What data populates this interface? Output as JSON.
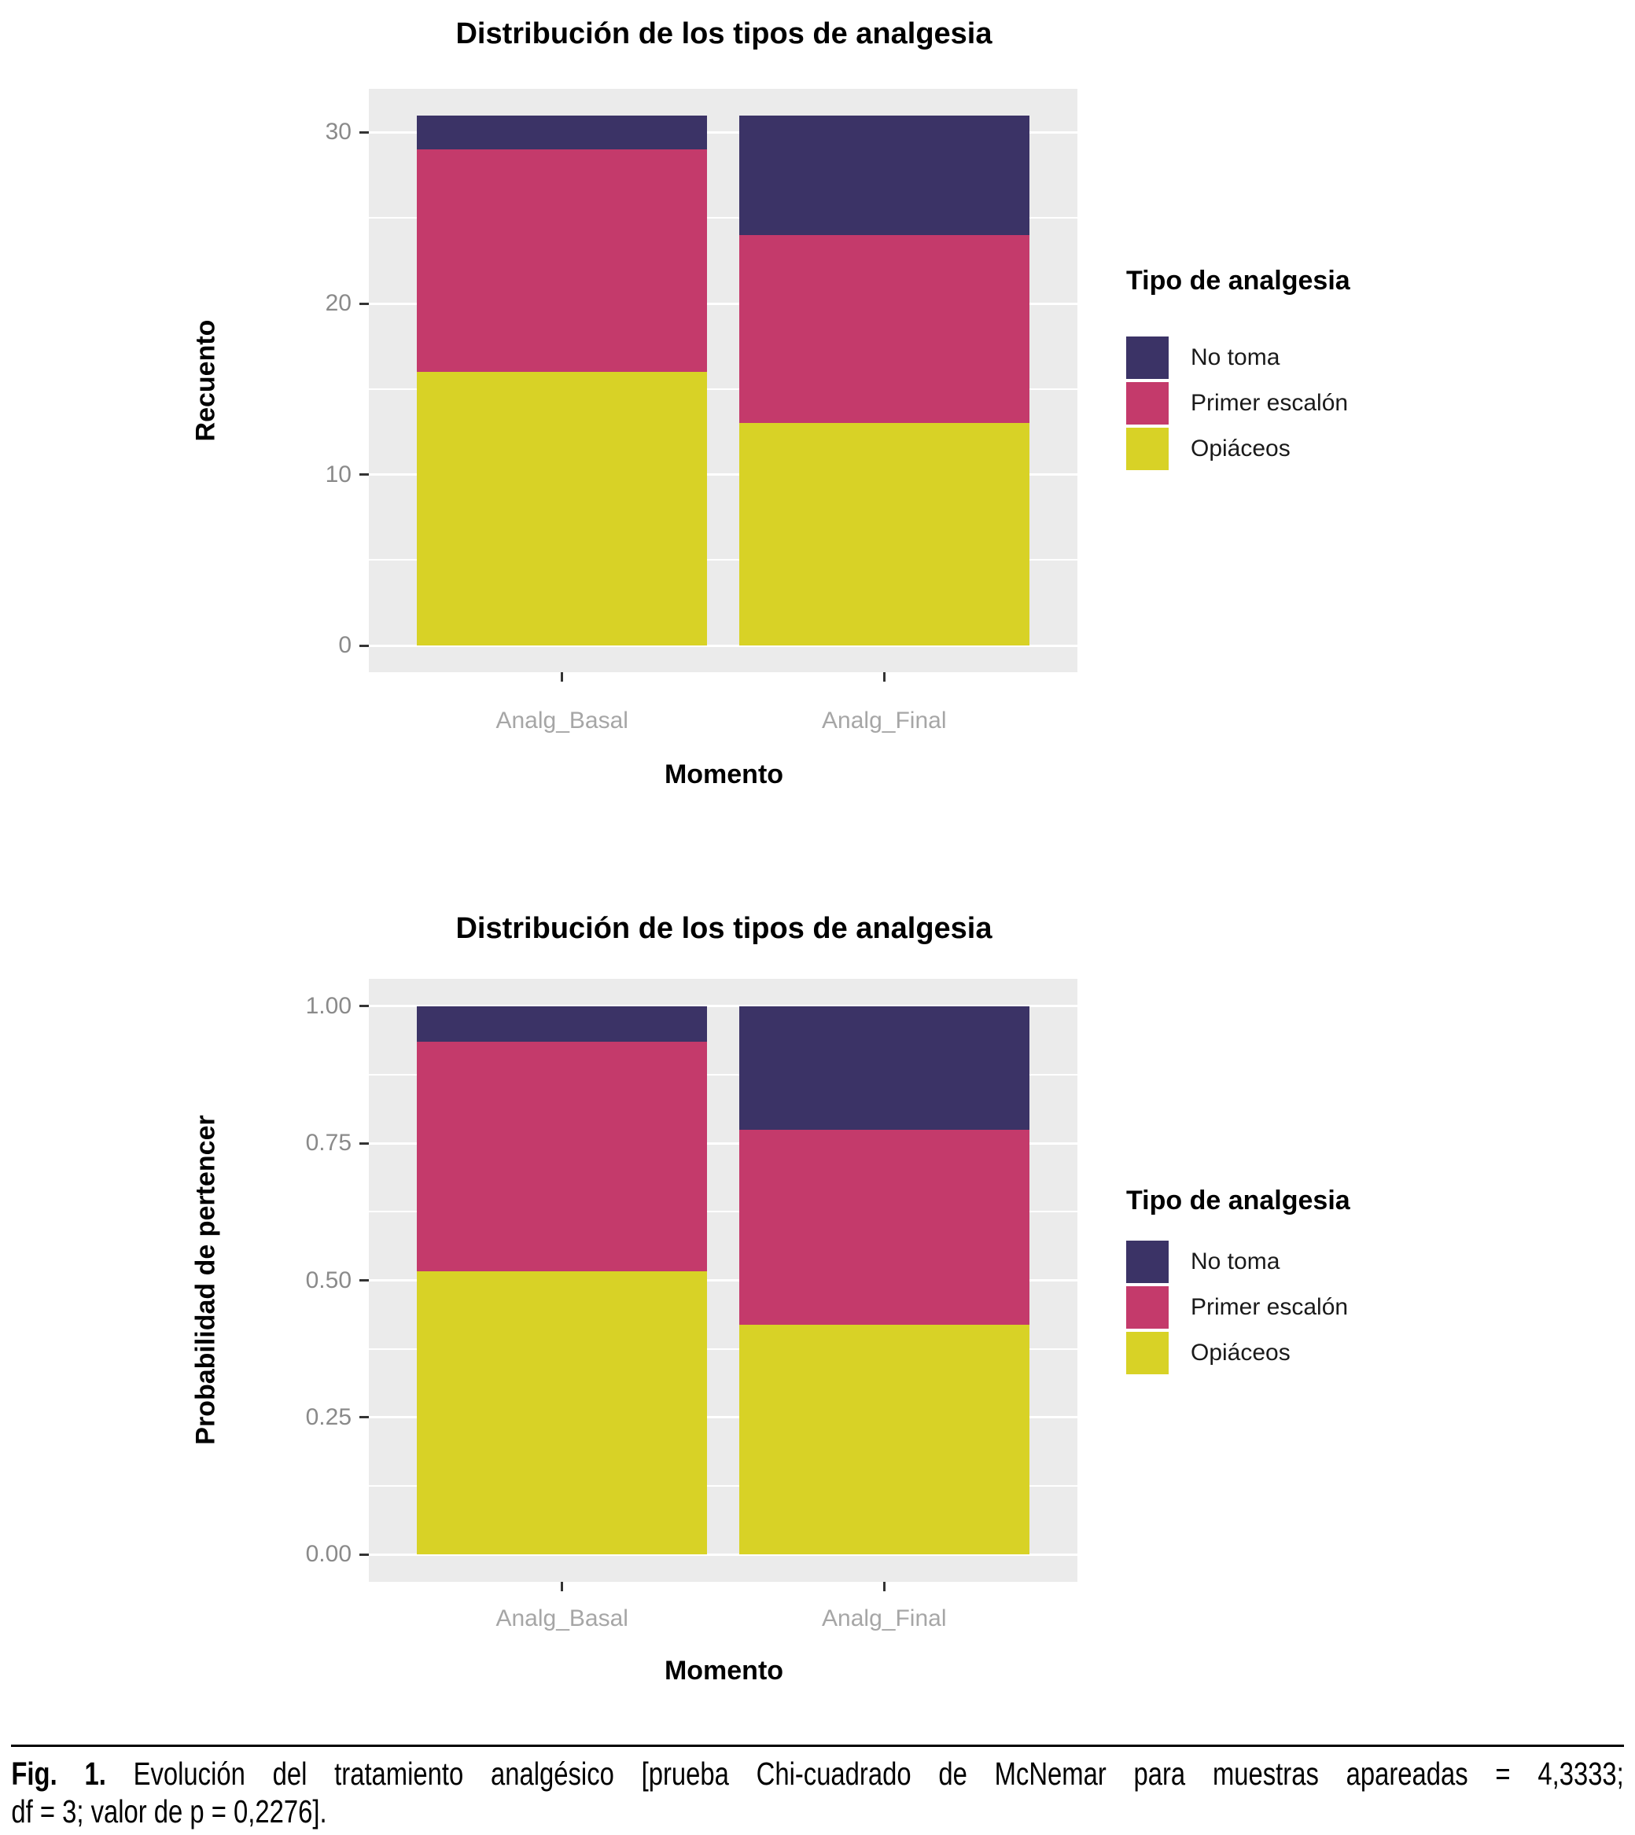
{
  "colors": {
    "no_toma": "#3B3366",
    "primer_escalon": "#C43A6B",
    "opiaceos": "#D8D226",
    "panel_bg": "#EBEBEB",
    "grid": "#FFFFFF",
    "ytick_text": "#8A8A8A",
    "xcat_text": "#A6A6A6",
    "tick_mark": "#333333"
  },
  "chart_data": [
    {
      "type": "bar",
      "variant": "stacked",
      "title": "Distribución de los tipos de analgesia",
      "xlabel": "Momento",
      "ylabel": "Recuento",
      "categories": [
        "Analg_Basal",
        "Analg_Final"
      ],
      "series": [
        {
          "name": "Opiáceos",
          "color": "#D8D226",
          "values": [
            16,
            13
          ]
        },
        {
          "name": "Primer escalón",
          "color": "#C43A6B",
          "values": [
            13,
            11
          ]
        },
        {
          "name": "No toma",
          "color": "#3B3366",
          "values": [
            2,
            7
          ]
        }
      ],
      "ylim": [
        0,
        31
      ],
      "yticks": [
        {
          "v": 0,
          "label": "0"
        },
        {
          "v": 10,
          "label": "10"
        },
        {
          "v": 20,
          "label": "20"
        },
        {
          "v": 30,
          "label": "30"
        }
      ],
      "grid": true,
      "legend": {
        "title": "Tipo de analgesia",
        "position": "right",
        "items": [
          {
            "label": "No toma",
            "color": "#3B3366"
          },
          {
            "label": "Primer escalón",
            "color": "#C43A6B"
          },
          {
            "label": "Opiáceos",
            "color": "#D8D226"
          }
        ]
      }
    },
    {
      "type": "bar",
      "variant": "stacked-fill",
      "title": "Distribución de los tipos de analgesia",
      "xlabel": "Momento",
      "ylabel": "Probabilidad de pertencer",
      "categories": [
        "Analg_Basal",
        "Analg_Final"
      ],
      "series": [
        {
          "name": "Opiáceos",
          "color": "#D8D226",
          "values": [
            0.5161,
            0.4194
          ]
        },
        {
          "name": "Primer escalón",
          "color": "#C43A6B",
          "values": [
            0.4194,
            0.3548
          ]
        },
        {
          "name": "No toma",
          "color": "#3B3366",
          "values": [
            0.0645,
            0.2258
          ]
        }
      ],
      "ylim": [
        0,
        1
      ],
      "yticks": [
        {
          "v": 0,
          "label": "0.00"
        },
        {
          "v": 0.25,
          "label": "0.25"
        },
        {
          "v": 0.5,
          "label": "0.50"
        },
        {
          "v": 0.75,
          "label": "0.75"
        },
        {
          "v": 1,
          "label": "1.00"
        }
      ],
      "grid": true,
      "legend": {
        "title": "Tipo de analgesia",
        "position": "right",
        "items": [
          {
            "label": "No toma",
            "color": "#3B3366"
          },
          {
            "label": "Primer escalón",
            "color": "#C43A6B"
          },
          {
            "label": "Opiáceos",
            "color": "#D8D226"
          }
        ]
      }
    }
  ],
  "caption": {
    "fig_label": "Fig. 1.",
    "line1_rest": " Evolución del tratamiento analgésico [prueba Chi-cuadrado de McNemar para muestras apareadas = 4,3333;",
    "line2": "df = 3; valor de p = 0,2276]."
  }
}
